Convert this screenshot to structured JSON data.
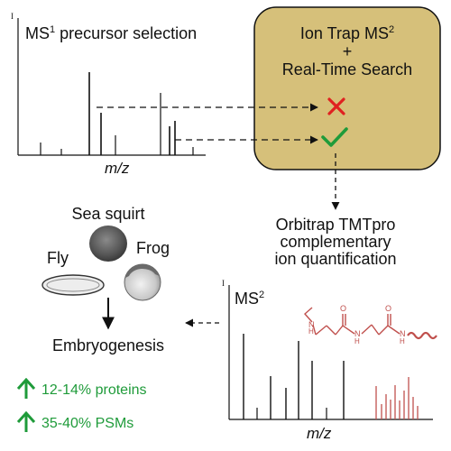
{
  "ms1": {
    "axis_y_label": "I",
    "title_prefix": "MS",
    "title_sup": "1",
    "title_suffix": " precursor selection",
    "axis_x_label": "m/z"
  },
  "search_box": {
    "line1_prefix": "Ion Trap MS",
    "line1_sup": "2",
    "line2": "+",
    "line3": "Real-Time Search",
    "fill_color": "#d6c07a",
    "reject_icon": "red-x-icon",
    "accept_icon": "green-check-icon"
  },
  "quant": {
    "line1": "Orbitrap TMTpro",
    "line2": "complementary",
    "line3": "ion quantification"
  },
  "organisms": {
    "sea_squirt": "Sea squirt",
    "fly": "Fly",
    "frog": "Frog",
    "outcome": "Embryogenesis"
  },
  "ms2": {
    "axis_y_label": "I",
    "title_prefix": "MS",
    "title_sup": "2",
    "axis_x_label": "m/z",
    "structure_atoms": [
      "N",
      "H",
      "O",
      "N",
      "H",
      "O",
      "N",
      "H"
    ]
  },
  "results": [
    {
      "text": "12-14% proteins",
      "icon": "up-arrow-icon"
    },
    {
      "text": "35-40% PSMs",
      "icon": "up-arrow-icon"
    }
  ],
  "colors": {
    "accent_green": "#1f9b3a",
    "accent_red": "#c0504d",
    "reject_red": "#e02020"
  }
}
